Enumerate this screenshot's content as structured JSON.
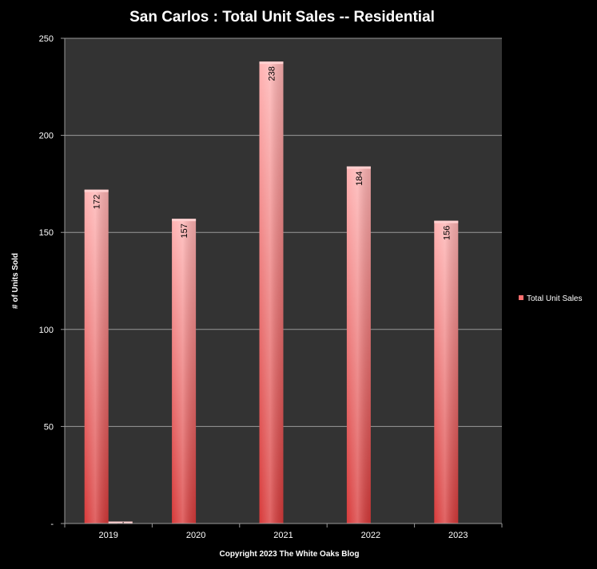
{
  "chart_data": {
    "type": "bar",
    "title": "San Carlos : Total Unit Sales -- Residential",
    "xlabel": "Copyright 2023 The White  Oaks Blog",
    "ylabel": "# of Units Sold",
    "categories": [
      "2019",
      "2020",
      "2021",
      "2022",
      "2023"
    ],
    "series": [
      {
        "name": "Total Unit Sales",
        "values": [
          172,
          157,
          238,
          184,
          156
        ]
      },
      {
        "values": [
          1,
          null,
          null,
          null,
          null
        ]
      }
    ],
    "ylim": [
      0,
      250
    ],
    "yticks": [
      0,
      50,
      100,
      150,
      200,
      250
    ],
    "ytick_labels": [
      "-",
      "50",
      "100",
      "150",
      "200",
      "250"
    ],
    "grid": true,
    "legend": "right",
    "data_labels": true,
    "colors": {
      "page_background": "#000000",
      "plot_background": "#333333",
      "bar_top": "#ffb3b3",
      "bar_bottom": "#d83a3a",
      "grid": "#9a9a9a",
      "text": "#ffffff",
      "data_label": "#000000"
    }
  }
}
